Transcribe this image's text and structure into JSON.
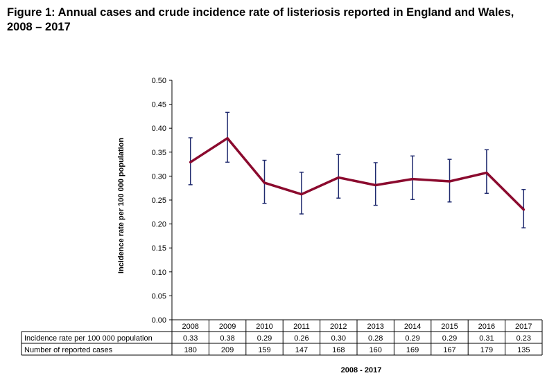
{
  "title": "Figure 1: Annual cases and crude incidence rate of listeriosis reported in England and Wales, 2008 – 2017",
  "chart_data": {
    "type": "line",
    "categories": [
      "2008",
      "2009",
      "2010",
      "2011",
      "2012",
      "2013",
      "2014",
      "2015",
      "2016",
      "2017"
    ],
    "series": [
      {
        "values": [
          0.329,
          0.379,
          0.286,
          0.262,
          0.297,
          0.281,
          0.294,
          0.289,
          0.307,
          0.23
        ],
        "error_low": [
          0.282,
          0.329,
          0.243,
          0.221,
          0.254,
          0.239,
          0.251,
          0.246,
          0.264,
          0.192
        ],
        "error_high": [
          0.38,
          0.433,
          0.333,
          0.308,
          0.345,
          0.328,
          0.342,
          0.335,
          0.355,
          0.272
        ],
        "color": "#8B0A2E",
        "error_bar_color": "#1F2A6E"
      }
    ],
    "ylabel": "Incidence rate per 100 000 population",
    "xlabel": "2008 - 2017",
    "ylim": [
      0,
      0.5
    ],
    "yticks": [
      "0.00",
      "0.05",
      "0.10",
      "0.15",
      "0.20",
      "0.25",
      "0.30",
      "0.35",
      "0.40",
      "0.45",
      "0.50"
    ],
    "grid": false,
    "data_table": {
      "rows": [
        {
          "label": "Incidence rate per 100 000 population",
          "values": [
            "0.33",
            "0.38",
            "0.29",
            "0.26",
            "0.30",
            "0.28",
            "0.29",
            "0.29",
            "0.31",
            "0.23"
          ]
        },
        {
          "label": "Number of reported cases",
          "values": [
            "180",
            "209",
            "159",
            "147",
            "168",
            "160",
            "169",
            "167",
            "179",
            "135"
          ]
        }
      ]
    }
  }
}
